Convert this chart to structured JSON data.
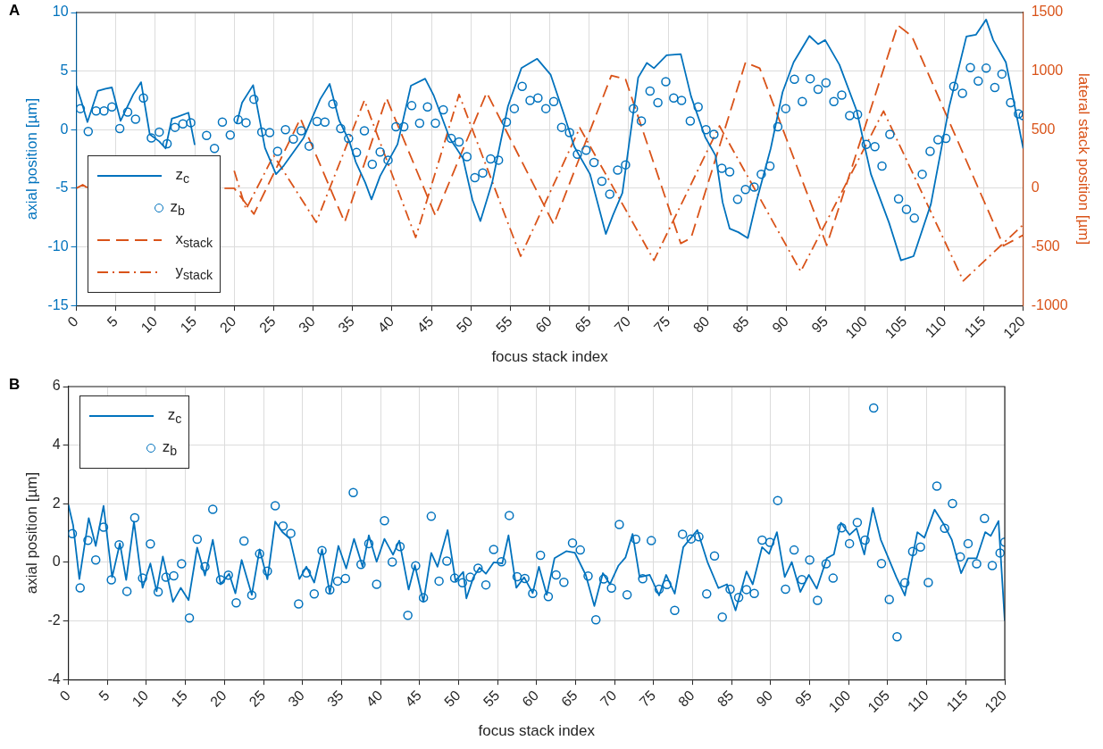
{
  "chart_data": [
    {
      "type": "line",
      "annotations": [
        "A"
      ],
      "xlabel": "focus stack index",
      "ylabel": "axial position [µm]",
      "y2label": "lateral stack position [µm]",
      "xlim": [
        0,
        120
      ],
      "xticks": [
        0,
        5,
        10,
        15,
        20,
        25,
        30,
        35,
        40,
        45,
        50,
        55,
        60,
        65,
        70,
        75,
        80,
        85,
        90,
        95,
        100,
        105,
        110,
        115,
        120
      ],
      "ylim": [
        -15,
        10
      ],
      "yticks": [
        -15,
        -10,
        -5,
        0,
        5,
        10
      ],
      "y2lim": [
        -1000,
        1500
      ],
      "y2ticks": [
        -1000,
        -500,
        0,
        500,
        1000,
        1500
      ],
      "grid": true,
      "legend": "bottom left",
      "series": [
        {
          "name": "z$_{c}$",
          "type": "line",
          "color": "#0072bd",
          "line_style": "solid",
          "x": [
            0,
            0.6,
            1.4,
            2.7,
            3.7,
            4.5,
            5.6,
            7.2,
            8.2,
            9.3,
            10.5,
            11.3,
            12.1,
            12.8,
            14.2,
            15,
            17,
            20.3,
            21,
            22.4,
            23.9,
            25.3,
            26.3,
            28.8,
            30.9,
            32.1,
            33.3,
            34.6,
            35.4,
            36.6,
            37.4,
            38.5,
            40.7,
            42.4,
            44.2,
            45.3,
            47.3,
            49,
            50.2,
            51.2,
            52.7,
            54.7,
            56.4,
            58.4,
            60.1,
            61.8,
            63.1,
            65.1,
            67.1,
            68,
            69.2,
            70.1,
            71.2,
            72.3,
            73.2,
            74.8,
            76.6,
            77.9,
            79.7,
            81,
            81.9,
            82.8,
            83.9,
            85.1,
            86.2,
            88,
            89.5,
            90.9,
            92.9,
            94,
            94.9,
            96.7,
            98.9,
            100.7,
            103,
            104.5,
            106.1,
            108.3,
            110.6,
            112.8,
            114,
            115.3,
            116.2,
            117.8,
            120
          ],
          "values": [
            3.75,
            2.5,
            0.65,
            3.3,
            3.5,
            3.6,
            0.75,
            3.0,
            4.05,
            -0.4,
            -1.0,
            -1.6,
            0.95,
            1.1,
            1.45,
            -1.3,
            null,
            0.5,
            2.3,
            3.8,
            -1.55,
            -3.8,
            -3.05,
            -0.7,
            2.6,
            3.9,
            0.8,
            -1.0,
            -2.75,
            -4.5,
            -5.95,
            -3.95,
            -1.25,
            3.75,
            4.35,
            2.9,
            -0.7,
            -2.45,
            -6.0,
            -7.8,
            -4.5,
            2.0,
            5.25,
            6.05,
            4.7,
            1.3,
            -1.45,
            -3.8,
            -8.9,
            -7.3,
            -5.4,
            -0.95,
            4.45,
            5.7,
            5.25,
            6.35,
            6.45,
            2.85,
            -0.65,
            -2.2,
            -6.2,
            -8.45,
            -8.75,
            -9.25,
            -6.1,
            -1.6,
            3.2,
            5.75,
            8.0,
            7.3,
            7.65,
            5.55,
            1.6,
            -3.8,
            -7.95,
            -11.15,
            -10.8,
            -6.35,
            1.9,
            7.95,
            8.1,
            9.4,
            7.65,
            5.75,
            -1.6
          ]
        },
        {
          "name": "z$_{b}$",
          "type": "scatter",
          "color": "#0072bd",
          "marker": "circle",
          "x": [
            0.5,
            1.5,
            2.5,
            3.5,
            4.5,
            5.5,
            6.5,
            7.5,
            8.5,
            9.5,
            10.5,
            11.5,
            12.5,
            13.5,
            14.5,
            15.5,
            16.5,
            17.5,
            18.5,
            19.5,
            20.5,
            21.5,
            22.5,
            23.5,
            24.5,
            25.5,
            26.5,
            27.5,
            28.5,
            29.5,
            30.5,
            31.5,
            32.5,
            33.5,
            34.5,
            35.5,
            36.5,
            37.5,
            38.5,
            39.5,
            40.5,
            41.5,
            42.5,
            43.5,
            44.5,
            45.5,
            46.5,
            47.5,
            48.5,
            49.5,
            50.5,
            51.5,
            52.5,
            53.5,
            54.5,
            55.5,
            56.5,
            57.5,
            58.5,
            59.5,
            60.5,
            61.5,
            62.5,
            63.5,
            64.6,
            65.6,
            66.6,
            67.6,
            68.6,
            69.6,
            70.6,
            71.6,
            72.7,
            73.7,
            74.7,
            75.7,
            76.7,
            77.8,
            78.8,
            79.8,
            80.8,
            81.8,
            82.8,
            83.8,
            84.8,
            85.9,
            86.8,
            87.9,
            88.9,
            89.9,
            91.0,
            92.0,
            93.0,
            94.0,
            95.0,
            96.0,
            97.0,
            98.0,
            99.0,
            100.1,
            101.2,
            102.1,
            103.1,
            104.2,
            105.2,
            106.2,
            107.2,
            108.2,
            109.2,
            110.2,
            111.2,
            112.3,
            113.3,
            114.3,
            115.3,
            116.4,
            117.3,
            118.4,
            119.4,
            120
          ],
          "values": [
            1.8,
            -0.15,
            1.6,
            1.6,
            1.95,
            0.1,
            1.5,
            0.9,
            2.7,
            -0.7,
            -0.2,
            -1.2,
            0.2,
            0.5,
            0.6,
            null,
            -0.5,
            -1.6,
            0.65,
            -0.45,
            0.85,
            0.6,
            2.6,
            -0.2,
            -0.25,
            -1.85,
            0,
            -0.8,
            -0.1,
            -1.4,
            0.7,
            0.65,
            2.2,
            0.1,
            -0.75,
            -1.95,
            -0.1,
            -2.95,
            -1.9,
            -2.6,
            0.25,
            0.25,
            2.05,
            0.55,
            1.95,
            0.55,
            1.7,
            -0.75,
            -1.05,
            -2.3,
            -4.1,
            -3.7,
            -2.5,
            -2.6,
            0.65,
            1.8,
            3.7,
            2.5,
            2.7,
            1.8,
            2.4,
            0.2,
            -0.25,
            -2.1,
            -1.75,
            -2.8,
            -4.4,
            -5.5,
            -3.45,
            -3.0,
            1.8,
            0.75,
            3.3,
            2.3,
            4.1,
            2.7,
            2.5,
            0.75,
            1.95,
            0,
            -0.4,
            -3.3,
            -3.6,
            -5.95,
            -5.1,
            -4.9,
            -3.8,
            -3.1,
            0.25,
            1.8,
            4.3,
            2.4,
            4.35,
            3.45,
            4.0,
            2.4,
            2.95,
            1.2,
            1.3,
            -1.25,
            -1.45,
            -3.1,
            -0.4,
            -5.9,
            -6.8,
            -7.55,
            -3.8,
            -1.85,
            -0.85,
            -0.75,
            3.7,
            3.1,
            5.3,
            4.15,
            5.25,
            3.6,
            4.75,
            2.3,
            1.35,
            1.2
          ]
        },
        {
          "name": "x$_{stack}$",
          "type": "line",
          "color": "#d95319",
          "line_style": "dashed",
          "axis": "y2",
          "x": [
            0,
            0.8,
            1.5,
            20,
            22.5,
            28.4,
            34,
            39.3,
            45.5,
            52,
            60.5,
            67.8,
            69.6,
            76.6,
            77.9,
            84.8,
            86.6,
            95.1,
            104.1,
            105.9,
            117.5,
            120
          ],
          "values": [
            0,
            30,
            0,
            0,
            -220,
            595,
            -290,
            770,
            -234,
            817,
            -308,
            962,
            930,
            -471,
            -424,
            1073,
            1025,
            -487,
            1392,
            1296,
            -490,
            -400
          ]
        },
        {
          "name": "y$_{stack}$",
          "type": "line",
          "color": "#d95319",
          "line_style": "dashdot",
          "axis": "y2",
          "x": [
            20,
            21.5,
            25,
            30.4,
            36.5,
            43,
            48.5,
            56.3,
            63.8,
            73.2,
            81.5,
            91.8,
            102.3,
            112.4,
            120
          ],
          "values": [
            150,
            -180,
            280,
            -290,
            750,
            -420,
            800,
            -580,
            516,
            -615,
            532,
            -710,
            659,
            -790,
            -310
          ]
        }
      ]
    },
    {
      "type": "line",
      "annotations": [
        "B"
      ],
      "xlabel": "focus stack index",
      "ylabel": "axial position [µm]",
      "xlim": [
        0,
        120
      ],
      "xticks": [
        0,
        5,
        10,
        15,
        20,
        25,
        30,
        35,
        40,
        45,
        50,
        55,
        60,
        65,
        70,
        75,
        80,
        85,
        90,
        95,
        100,
        105,
        110,
        115,
        120
      ],
      "ylim": [
        -4,
        6
      ],
      "yticks": [
        -4,
        -2,
        0,
        2,
        4,
        6
      ],
      "grid": true,
      "legend": "top left",
      "series": [
        {
          "name": "z$_{c}$",
          "type": "line",
          "color": "#0072bd",
          "line_style": "solid",
          "x": [
            0,
            0.6,
            1.4,
            2.6,
            3.5,
            4.5,
            5.6,
            6.6,
            7.4,
            8.4,
            9.5,
            10.5,
            11.3,
            12.1,
            13.4,
            14.4,
            15.4,
            16.5,
            17.5,
            18.5,
            19.5,
            20.6,
            21.4,
            22.2,
            23.5,
            24.5,
            25.5,
            26.5,
            27.4,
            28.4,
            29.6,
            30.5,
            31.5,
            32.5,
            33.5,
            34.6,
            35.6,
            36.6,
            37.7,
            38.5,
            39.5,
            40.5,
            41.6,
            42.4,
            43.6,
            44.4,
            45.5,
            46.5,
            47.3,
            48.6,
            49.6,
            50.6,
            51,
            51.9,
            52.7,
            53.5,
            54.5,
            55.6,
            56.4,
            57.4,
            58.4,
            59.5,
            60.3,
            61.3,
            62.3,
            63.8,
            64.9,
            66.3,
            67.4,
            68.5,
            69.4,
            70.5,
            71.4,
            72.3,
            73.2,
            74.5,
            75.7,
            76.6,
            77.7,
            78.8,
            80.6,
            81.9,
            83.3,
            84.4,
            85.5,
            86.9,
            87.7,
            88.9,
            89.8,
            90.8,
            91.8,
            92.7,
            93.8,
            94.9,
            95.9,
            97.2,
            98.1,
            99,
            100.1,
            101,
            102,
            103.1,
            104.1,
            106.1,
            107.2,
            108.8,
            109.7,
            111,
            112.2,
            113.2,
            114.4,
            115.3,
            116.4,
            117.5,
            118.2,
            119.2,
            120
          ],
          "values": [
            1.96,
            1.27,
            -0.57,
            1.51,
            0.56,
            1.93,
            -0.51,
            0.65,
            -0.6,
            1.39,
            -0.87,
            -0.04,
            -0.99,
            0.2,
            -1.35,
            -0.87,
            -1.29,
            0.5,
            -0.45,
            0.77,
            -0.75,
            -0.39,
            -1.06,
            0.08,
            -1.11,
            0.44,
            -0.58,
            1.39,
            1.04,
            0.8,
            -0.57,
            -0.15,
            -0.69,
            0.44,
            -1.05,
            0.56,
            -0.21,
            0.8,
            -0.15,
            0.92,
            0.02,
            0.8,
            0.26,
            0.74,
            -0.93,
            -0.1,
            -1.35,
            0.32,
            -0.15,
            1.1,
            -0.63,
            -0.33,
            -1.23,
            -0.51,
            -0.18,
            -0.39,
            0,
            -0.04,
            0.92,
            -0.87,
            -0.51,
            -1.05,
            -0.15,
            -1.11,
            0.14,
            0.38,
            0.33,
            -0.43,
            -1.49,
            -0.37,
            -0.75,
            -0.11,
            0.17,
            0.97,
            -0.5,
            -0.43,
            -1.13,
            -0.43,
            -1.07,
            0.52,
            1.1,
            0.01,
            -0.88,
            -0.75,
            -1.64,
            -0.31,
            -0.75,
            0.52,
            0.29,
            1.03,
            -0.5,
            0.01,
            -1.01,
            -0.43,
            -0.9,
            0.14,
            0.27,
            1.35,
            0.94,
            1.16,
            0.27,
            1.86,
            0.78,
            -0.5,
            -1.13,
            1.03,
            0.84,
            1.8,
            1.29,
            0.78,
            -0.37,
            0.14,
            0.14,
            1.03,
            0.9,
            1.41,
            -2.0
          ]
        },
        {
          "name": "z$_{b}$",
          "type": "scatter",
          "color": "#0072bd",
          "marker": "circle",
          "x": [
            0.5,
            1.5,
            2.5,
            3.5,
            4.5,
            5.5,
            6.5,
            7.5,
            8.5,
            9.5,
            10.5,
            11.5,
            12.5,
            13.5,
            14.5,
            15.5,
            16.5,
            17.5,
            18.5,
            19.5,
            20.5,
            21.5,
            22.5,
            23.5,
            24.5,
            25.5,
            26.5,
            27.5,
            28.5,
            29.5,
            30.5,
            31.5,
            32.5,
            33.5,
            34.5,
            35.5,
            36.5,
            37.5,
            38.5,
            39.5,
            40.5,
            41.5,
            42.5,
            43.5,
            44.5,
            45.5,
            46.5,
            47.5,
            48.5,
            49.5,
            50.5,
            51.5,
            52.5,
            53.5,
            54.5,
            55.5,
            56.5,
            57.5,
            58.5,
            59.5,
            60.5,
            61.5,
            62.5,
            63.5,
            64.6,
            65.6,
            66.6,
            67.6,
            68.6,
            69.6,
            70.6,
            71.6,
            72.7,
            73.6,
            74.7,
            75.7,
            76.7,
            77.7,
            78.7,
            79.8,
            80.8,
            81.8,
            82.8,
            83.8,
            84.8,
            85.9,
            86.9,
            87.9,
            88.9,
            89.9,
            90.9,
            91.9,
            93.0,
            94.0,
            95.0,
            96.0,
            97.1,
            98.0,
            99.1,
            100.1,
            101.1,
            102.1,
            103.2,
            104.2,
            105.2,
            106.2,
            107.2,
            108.2,
            109.2,
            110.2,
            111.3,
            112.3,
            113.3,
            114.3,
            115.3,
            116.4,
            117.4,
            118.4,
            119.4,
            120
          ],
          "values": [
            0.98,
            -0.87,
            0.75,
            0.08,
            1.2,
            -0.6,
            0.6,
            -0.99,
            1.52,
            -0.54,
            0.63,
            -1.01,
            -0.51,
            -0.46,
            -0.05,
            -1.9,
            0.79,
            -0.15,
            1.81,
            -0.6,
            -0.44,
            -1.38,
            0.73,
            -1.12,
            0.29,
            -0.3,
            1.93,
            1.24,
            0.99,
            -1.42,
            -0.36,
            -1.08,
            0.4,
            -0.94,
            -0.64,
            -0.55,
            2.38,
            -0.07,
            0.64,
            -0.75,
            1.42,
            0.01,
            0.54,
            -1.81,
            -0.12,
            -1.21,
            1.57,
            -0.64,
            0.04,
            -0.54,
            -0.7,
            -0.51,
            -0.2,
            -0.77,
            0.44,
            0.02,
            1.6,
            -0.49,
            -0.55,
            -1.06,
            0.24,
            -1.17,
            -0.43,
            -0.68,
            0.66,
            0.42,
            -0.47,
            -1.96,
            -0.57,
            -0.88,
            1.29,
            -1.11,
            0.79,
            -0.56,
            0.74,
            -0.92,
            -0.76,
            -1.64,
            0.96,
            0.8,
            0.87,
            -1.08,
            0.22,
            -1.87,
            -0.92,
            -1.2,
            -0.93,
            -1.06,
            0.76,
            0.68,
            2.11,
            -0.92,
            0.42,
            -0.59,
            0.08,
            -1.3,
            -0.05,
            -0.54,
            1.18,
            0.64,
            1.36,
            0.76,
            5.27,
            -0.04,
            -1.27,
            -2.54,
            -0.7,
            0.37,
            0.52,
            -0.69,
            2.6,
            1.16,
            2.01,
            0.19,
            0.64,
            -0.05,
            1.5,
            -0.11,
            0.32,
            0.69
          ]
        }
      ]
    }
  ]
}
